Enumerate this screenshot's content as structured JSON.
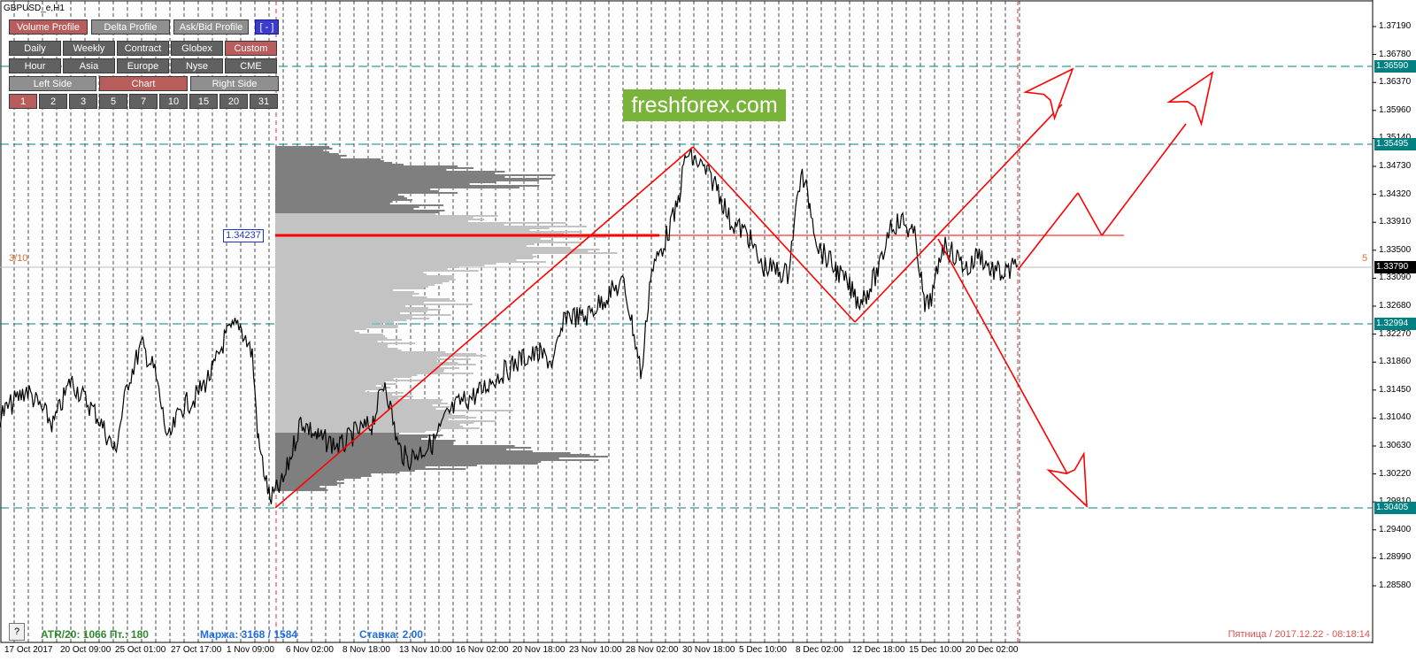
{
  "symbol": {
    "title": "GBPUSD_e,H1"
  },
  "panel": {
    "row1": [
      "Volume Profile",
      "Delta Profile",
      "Ask/Bid Profile",
      "[ - ]"
    ],
    "row2": [
      "Daily",
      "Weekly",
      "Contract",
      "Globex",
      "Custom"
    ],
    "row3": [
      "Hour",
      "Asia",
      "Europe",
      "Nyse",
      "CME"
    ],
    "row4": [
      "Left Side",
      "Chart",
      "Right Side"
    ],
    "row5": [
      "1",
      "2",
      "3",
      "5",
      "7",
      "10",
      "15",
      "20",
      "31"
    ]
  },
  "logo": {
    "text": "freshforex.com",
    "color": "#7ab33a"
  },
  "price_axis": {
    "labels": [
      "1.37190",
      "1.36780",
      "1.36370",
      "1.35960",
      "1.35140",
      "1.34730",
      "1.34320",
      "1.33910",
      "1.33500",
      "1.33090",
      "1.32680",
      "1.32270",
      "1.31860",
      "1.31450",
      "1.31040",
      "1.30630",
      "1.30220",
      "1.29810",
      "1.29400",
      "1.28990",
      "1.28580"
    ],
    "tags": [
      {
        "value": "1.36590",
        "color": "#008080"
      },
      {
        "value": "1.35495",
        "color": "#008080"
      },
      {
        "value": "1.33790",
        "color": "#000000"
      },
      {
        "value": "1.32994",
        "color": "#008080"
      },
      {
        "value": "1.30405",
        "color": "#008080"
      }
    ]
  },
  "date_axis": [
    "17 Oct 2017",
    "20 Oct 09:00",
    "25 Oct 01:00",
    "27 Oct 17:00",
    "1 Nov 09:00",
    "6 Nov 02:00",
    "8 Nov 18:00",
    "13 Nov 10:00",
    "16 Nov 02:00",
    "20 Nov 18:00",
    "23 Nov 10:00",
    "28 Nov 02:00",
    "30 Nov 18:00",
    "5 Dec 10:00",
    "8 Dec 02:00",
    "12 Dec 18:00",
    "15 Dec 10:00",
    "20 Dec 02:00"
  ],
  "poc_price": "1.34237",
  "left_ratio": "3/10",
  "right_count": "5",
  "help_button": "?",
  "status": {
    "atr": "ATR/20: 1066  Пт.: 180",
    "margin": "Маржа: 3168 / 1584",
    "rate": "Ставка: 2.00"
  },
  "datetime": "Пятница  /  2017.12.22  -  08:18:14",
  "colors": {
    "level_line": "#008080",
    "trend": "#ff0000",
    "profile_dark": "#7f7f7f",
    "profile_light": "#c3c3c3",
    "price_bars": "#000000"
  }
}
